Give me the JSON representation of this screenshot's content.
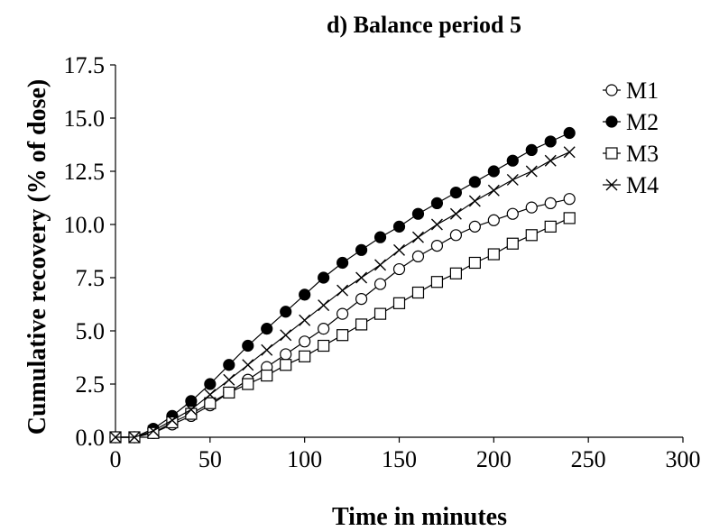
{
  "chart_data": {
    "type": "line",
    "title": "d) Balance period 5",
    "xlabel": "Time in minutes",
    "ylabel": "Cumulative recovery (% of dose)",
    "xlim": [
      0,
      300
    ],
    "ylim": [
      0,
      17.5
    ],
    "xticks": [
      "0",
      "50",
      "100",
      "150",
      "200",
      "250",
      "300"
    ],
    "yticks": [
      "0.0",
      "2.5",
      "5.0",
      "7.5",
      "10.0",
      "12.5",
      "15.0",
      "17.5"
    ],
    "grid": false,
    "legend_position": "top-right",
    "x": [
      0,
      10,
      20,
      30,
      40,
      50,
      60,
      70,
      80,
      90,
      100,
      110,
      120,
      130,
      140,
      150,
      160,
      170,
      180,
      190,
      200,
      210,
      220,
      230,
      240
    ],
    "series": [
      {
        "name": "M1",
        "marker": "open-circle",
        "color": "#000000",
        "values": [
          0.0,
          0.0,
          0.2,
          0.6,
          1.0,
          1.5,
          2.1,
          2.7,
          3.3,
          3.9,
          4.5,
          5.1,
          5.8,
          6.5,
          7.2,
          7.9,
          8.5,
          9.0,
          9.5,
          9.9,
          10.2,
          10.5,
          10.8,
          11.0,
          11.2
        ]
      },
      {
        "name": "M2",
        "marker": "filled-circle",
        "color": "#000000",
        "values": [
          0.0,
          0.0,
          0.4,
          1.0,
          1.7,
          2.5,
          3.4,
          4.3,
          5.1,
          5.9,
          6.7,
          7.5,
          8.2,
          8.8,
          9.4,
          9.9,
          10.5,
          11.0,
          11.5,
          12.0,
          12.5,
          13.0,
          13.5,
          13.9,
          14.3
        ]
      },
      {
        "name": "M3",
        "marker": "open-square",
        "color": "#000000",
        "values": [
          0.0,
          0.0,
          0.2,
          0.7,
          1.1,
          1.6,
          2.1,
          2.5,
          2.9,
          3.4,
          3.8,
          4.3,
          4.8,
          5.3,
          5.8,
          6.3,
          6.8,
          7.3,
          7.7,
          8.2,
          8.6,
          9.1,
          9.5,
          9.9,
          10.3
        ]
      },
      {
        "name": "M4",
        "marker": "x",
        "color": "#000000",
        "values": [
          0.0,
          0.0,
          0.3,
          0.8,
          1.3,
          2.0,
          2.7,
          3.4,
          4.1,
          4.8,
          5.5,
          6.2,
          6.9,
          7.5,
          8.1,
          8.8,
          9.4,
          10.0,
          10.5,
          11.1,
          11.6,
          12.1,
          12.5,
          13.0,
          13.4
        ]
      }
    ]
  }
}
